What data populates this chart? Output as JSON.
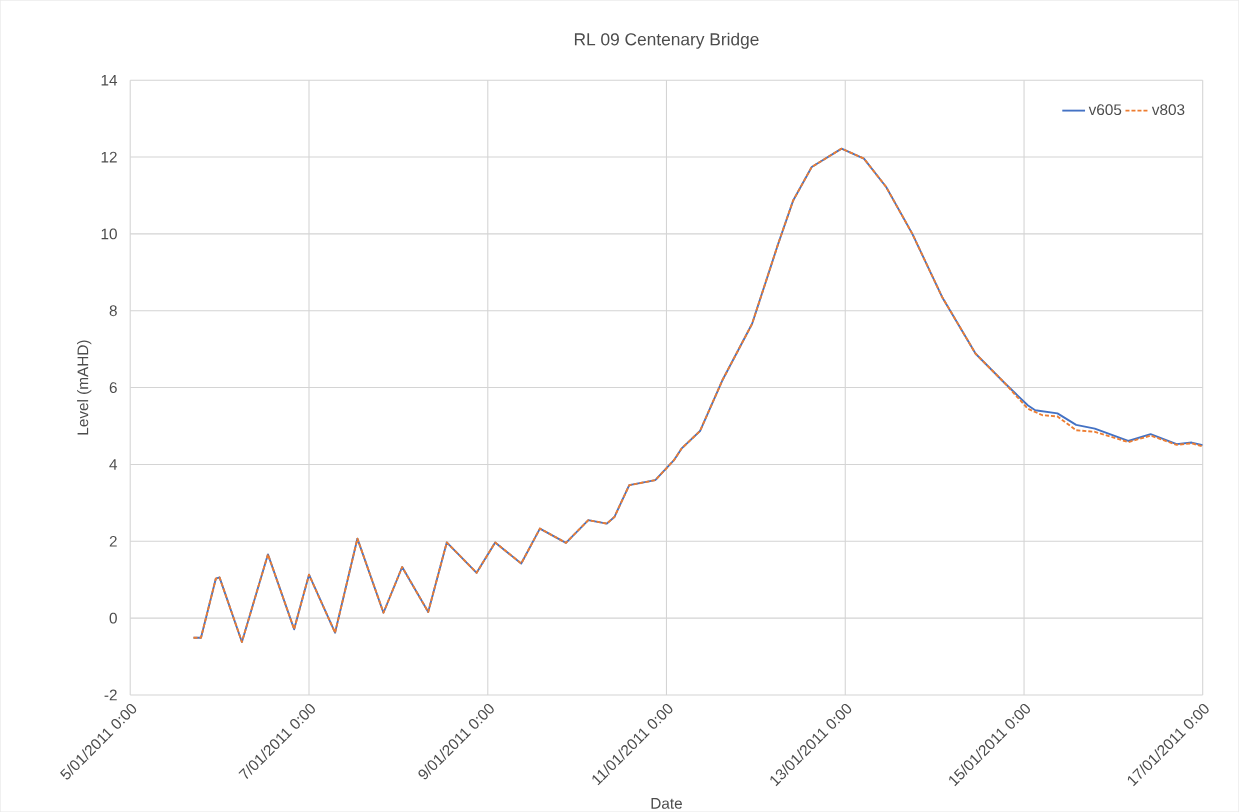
{
  "chart_data": {
    "type": "line",
    "title": "RL 09 Centenary Bridge",
    "xlabel": "Date",
    "ylabel": "Level (mAHD)",
    "xlim": [
      "2011-01-05T00:00",
      "2011-01-17T00:00"
    ],
    "xticks": [
      {
        "value": "2011-01-05T00:00",
        "label": "5/01/2011 0:00"
      },
      {
        "value": "2011-01-07T00:00",
        "label": "7/01/2011 0:00"
      },
      {
        "value": "2011-01-09T00:00",
        "label": "9/01/2011 0:00"
      },
      {
        "value": "2011-01-11T00:00",
        "label": "11/01/2011 0:00"
      },
      {
        "value": "2011-01-13T00:00",
        "label": "13/01/2011 0:00"
      },
      {
        "value": "2011-01-15T00:00",
        "label": "15/01/2011 0:00"
      },
      {
        "value": "2011-01-17T00:00",
        "label": "17/01/2011 0:00"
      }
    ],
    "ylim": [
      -2,
      14
    ],
    "yticks": [
      -2,
      0,
      2,
      4,
      6,
      8,
      10,
      12,
      14
    ],
    "grid": true,
    "legend": "top right",
    "series": [
      {
        "name": "v605",
        "color": "#4472c4",
        "line_style": "solid",
        "x": [
          "2011-01-05T17:00",
          "2011-01-05T19:00",
          "2011-01-05T23:00",
          "2011-01-06T00:00",
          "2011-01-06T06:00",
          "2011-01-06T13:00",
          "2011-01-06T20:00",
          "2011-01-06T22:00",
          "2011-01-07T00:00",
          "2011-01-07T07:00",
          "2011-01-07T13:00",
          "2011-01-07T20:00",
          "2011-01-08T01:00",
          "2011-01-08T08:00",
          "2011-01-08T13:00",
          "2011-01-08T21:00",
          "2011-01-09T02:00",
          "2011-01-09T09:00",
          "2011-01-09T14:00",
          "2011-01-09T21:00",
          "2011-01-10T03:00",
          "2011-01-10T08:00",
          "2011-01-10T10:00",
          "2011-01-10T14:00",
          "2011-01-10T21:00",
          "2011-01-11T02:00",
          "2011-01-11T04:00",
          "2011-01-11T09:00",
          "2011-01-11T15:00",
          "2011-01-11T23:00",
          "2011-01-12T06:00",
          "2011-01-12T10:00",
          "2011-01-12T15:00",
          "2011-01-12T23:00",
          "2011-01-13T05:00",
          "2011-01-13T11:00",
          "2011-01-13T18:00",
          "2011-01-14T02:00",
          "2011-01-14T11:00",
          "2011-01-14T19:00",
          "2011-01-15T01:00",
          "2011-01-15T03:00",
          "2011-01-15T09:00",
          "2011-01-15T14:00",
          "2011-01-15T19:00",
          "2011-01-16T04:00",
          "2011-01-16T10:00",
          "2011-01-16T17:00",
          "2011-01-16T21:00",
          "2011-01-17T00:00"
        ],
        "values": [
          -0.51,
          -0.51,
          1.03,
          1.06,
          -0.62,
          1.66,
          -0.29,
          0.42,
          1.13,
          -0.38,
          2.07,
          0.14,
          1.33,
          0.16,
          1.97,
          1.18,
          1.97,
          1.42,
          2.33,
          1.96,
          2.55,
          2.46,
          2.63,
          3.46,
          3.59,
          4.11,
          4.41,
          4.87,
          6.19,
          7.66,
          9.74,
          10.87,
          11.74,
          12.22,
          11.96,
          11.22,
          10.0,
          8.36,
          6.88,
          6.1,
          5.54,
          5.41,
          5.33,
          5.03,
          4.93,
          4.61,
          4.79,
          4.53,
          4.57,
          4.5
        ]
      },
      {
        "name": "v803",
        "color": "#ed7d31",
        "line_style": "dashed",
        "x": [
          "2011-01-05T17:00",
          "2011-01-05T19:00",
          "2011-01-05T23:00",
          "2011-01-06T00:00",
          "2011-01-06T06:00",
          "2011-01-06T13:00",
          "2011-01-06T20:00",
          "2011-01-06T22:00",
          "2011-01-07T00:00",
          "2011-01-07T07:00",
          "2011-01-07T13:00",
          "2011-01-07T20:00",
          "2011-01-08T01:00",
          "2011-01-08T08:00",
          "2011-01-08T13:00",
          "2011-01-08T21:00",
          "2011-01-09T02:00",
          "2011-01-09T09:00",
          "2011-01-09T14:00",
          "2011-01-09T21:00",
          "2011-01-10T03:00",
          "2011-01-10T08:00",
          "2011-01-10T10:00",
          "2011-01-10T14:00",
          "2011-01-10T21:00",
          "2011-01-11T02:00",
          "2011-01-11T04:00",
          "2011-01-11T09:00",
          "2011-01-11T15:00",
          "2011-01-11T23:00",
          "2011-01-12T06:00",
          "2011-01-12T10:00",
          "2011-01-12T15:00",
          "2011-01-12T23:00",
          "2011-01-13T05:00",
          "2011-01-13T11:00",
          "2011-01-13T18:00",
          "2011-01-14T02:00",
          "2011-01-14T11:00",
          "2011-01-14T19:00",
          "2011-01-15T01:00",
          "2011-01-15T05:00",
          "2011-01-15T09:00",
          "2011-01-15T14:00",
          "2011-01-15T19:00",
          "2011-01-16T04:00",
          "2011-01-16T10:00",
          "2011-01-16T17:00",
          "2011-01-16T21:00",
          "2011-01-17T00:00"
        ],
        "values": [
          -0.51,
          -0.51,
          1.03,
          1.06,
          -0.62,
          1.66,
          -0.29,
          0.42,
          1.13,
          -0.38,
          2.07,
          0.14,
          1.33,
          0.16,
          1.97,
          1.18,
          1.97,
          1.42,
          2.33,
          1.96,
          2.55,
          2.46,
          2.63,
          3.46,
          3.59,
          4.11,
          4.41,
          4.87,
          6.19,
          7.66,
          9.74,
          10.87,
          11.74,
          12.22,
          11.96,
          11.22,
          10.0,
          8.36,
          6.88,
          6.1,
          5.45,
          5.28,
          5.25,
          4.89,
          4.85,
          4.58,
          4.75,
          4.51,
          4.55,
          4.47
        ]
      }
    ]
  }
}
